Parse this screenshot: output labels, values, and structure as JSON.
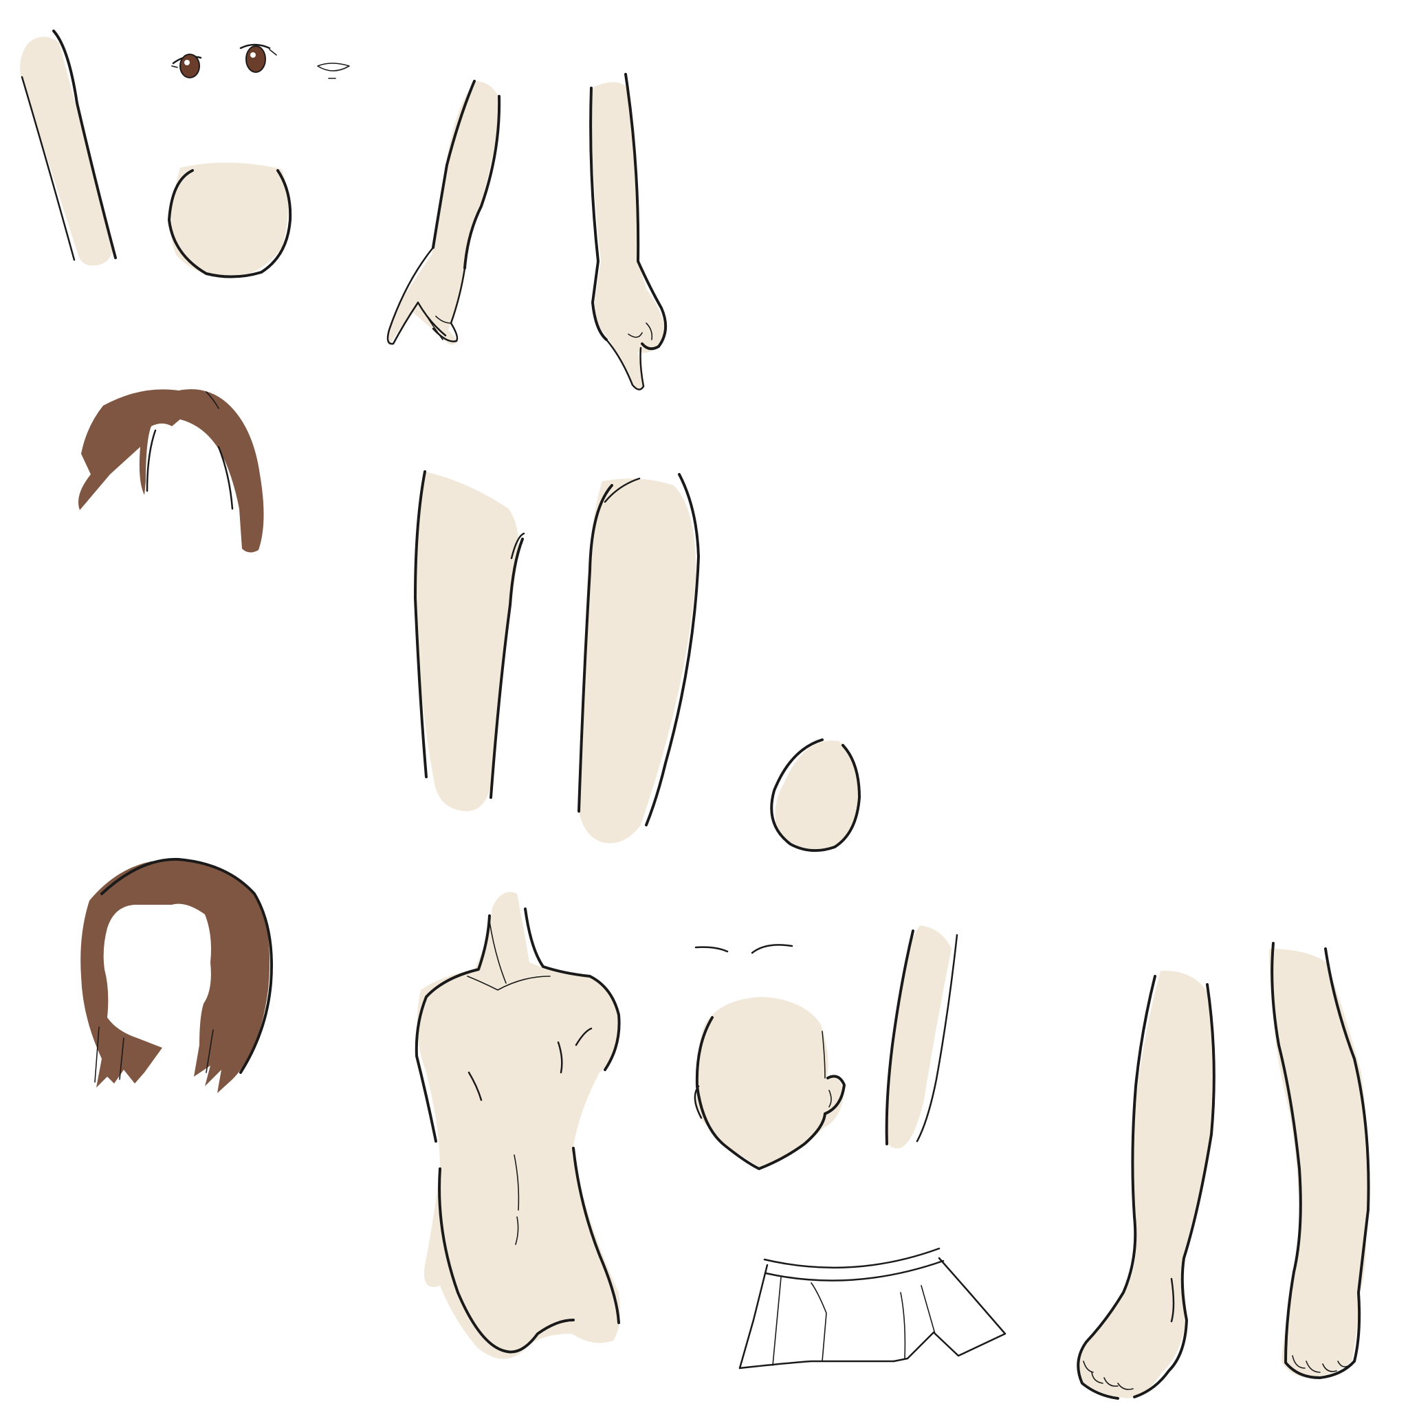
{
  "colors": {
    "background": "#ffffff",
    "skin": "#f1e8d9",
    "hair": "#7f5641",
    "iris": "#6b3e2c",
    "line": "#1a1a1a",
    "skirt": "#ffffff"
  },
  "parts": [
    "upper-arm-left",
    "eyes",
    "nose",
    "face-circle",
    "forearm-hand-left",
    "forearm-hand-right",
    "back-hair",
    "thigh-left",
    "thigh-right",
    "ear",
    "front-hair",
    "torso",
    "eyebrows",
    "head",
    "upper-arm-right",
    "skirt",
    "lower-leg-left",
    "lower-leg-right"
  ]
}
